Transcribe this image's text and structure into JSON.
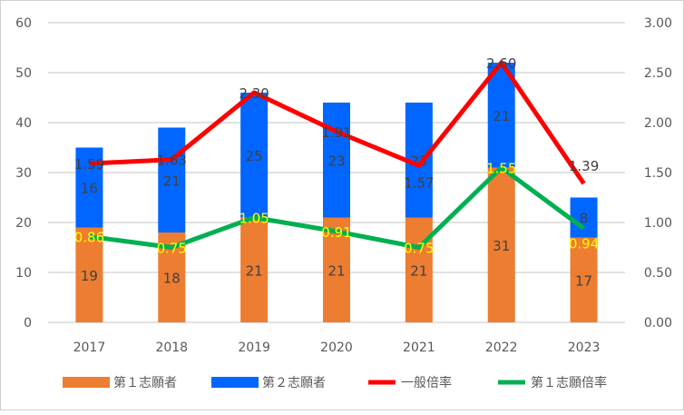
{
  "chart_data": {
    "type": "bar+line",
    "categories": [
      "2017",
      "2018",
      "2019",
      "2020",
      "2021",
      "2022",
      "2023"
    ],
    "bar_series": [
      {
        "name": "第１志願者",
        "color": "#ED7D31",
        "values": [
          19,
          18,
          21,
          21,
          21,
          31,
          17
        ]
      },
      {
        "name": "第２志願者",
        "color": "#0066FF",
        "values": [
          16,
          21,
          25,
          23,
          23,
          21,
          8
        ]
      }
    ],
    "line_series": [
      {
        "name": "一般倍率",
        "color": "#FF0000",
        "axis": "right",
        "label_color": "#404040",
        "values": [
          1.59,
          1.63,
          2.3,
          1.91,
          1.57,
          2.6,
          1.39
        ]
      },
      {
        "name": "第１志願倍率",
        "color": "#00B050",
        "axis": "right",
        "label_color": "#FFFF00",
        "values": [
          0.86,
          0.75,
          1.05,
          0.91,
          0.75,
          1.55,
          0.94
        ]
      }
    ],
    "y_left": {
      "range": [
        0,
        60
      ],
      "ticks": [
        "0",
        "10",
        "20",
        "30",
        "40",
        "50",
        "60"
      ]
    },
    "y_right": {
      "range": [
        0,
        3
      ],
      "ticks": [
        "0.00",
        "0.50",
        "1.00",
        "1.50",
        "2.00",
        "2.50",
        "3.00"
      ]
    },
    "stacked": true,
    "grid": true,
    "legend_position": "bottom"
  }
}
